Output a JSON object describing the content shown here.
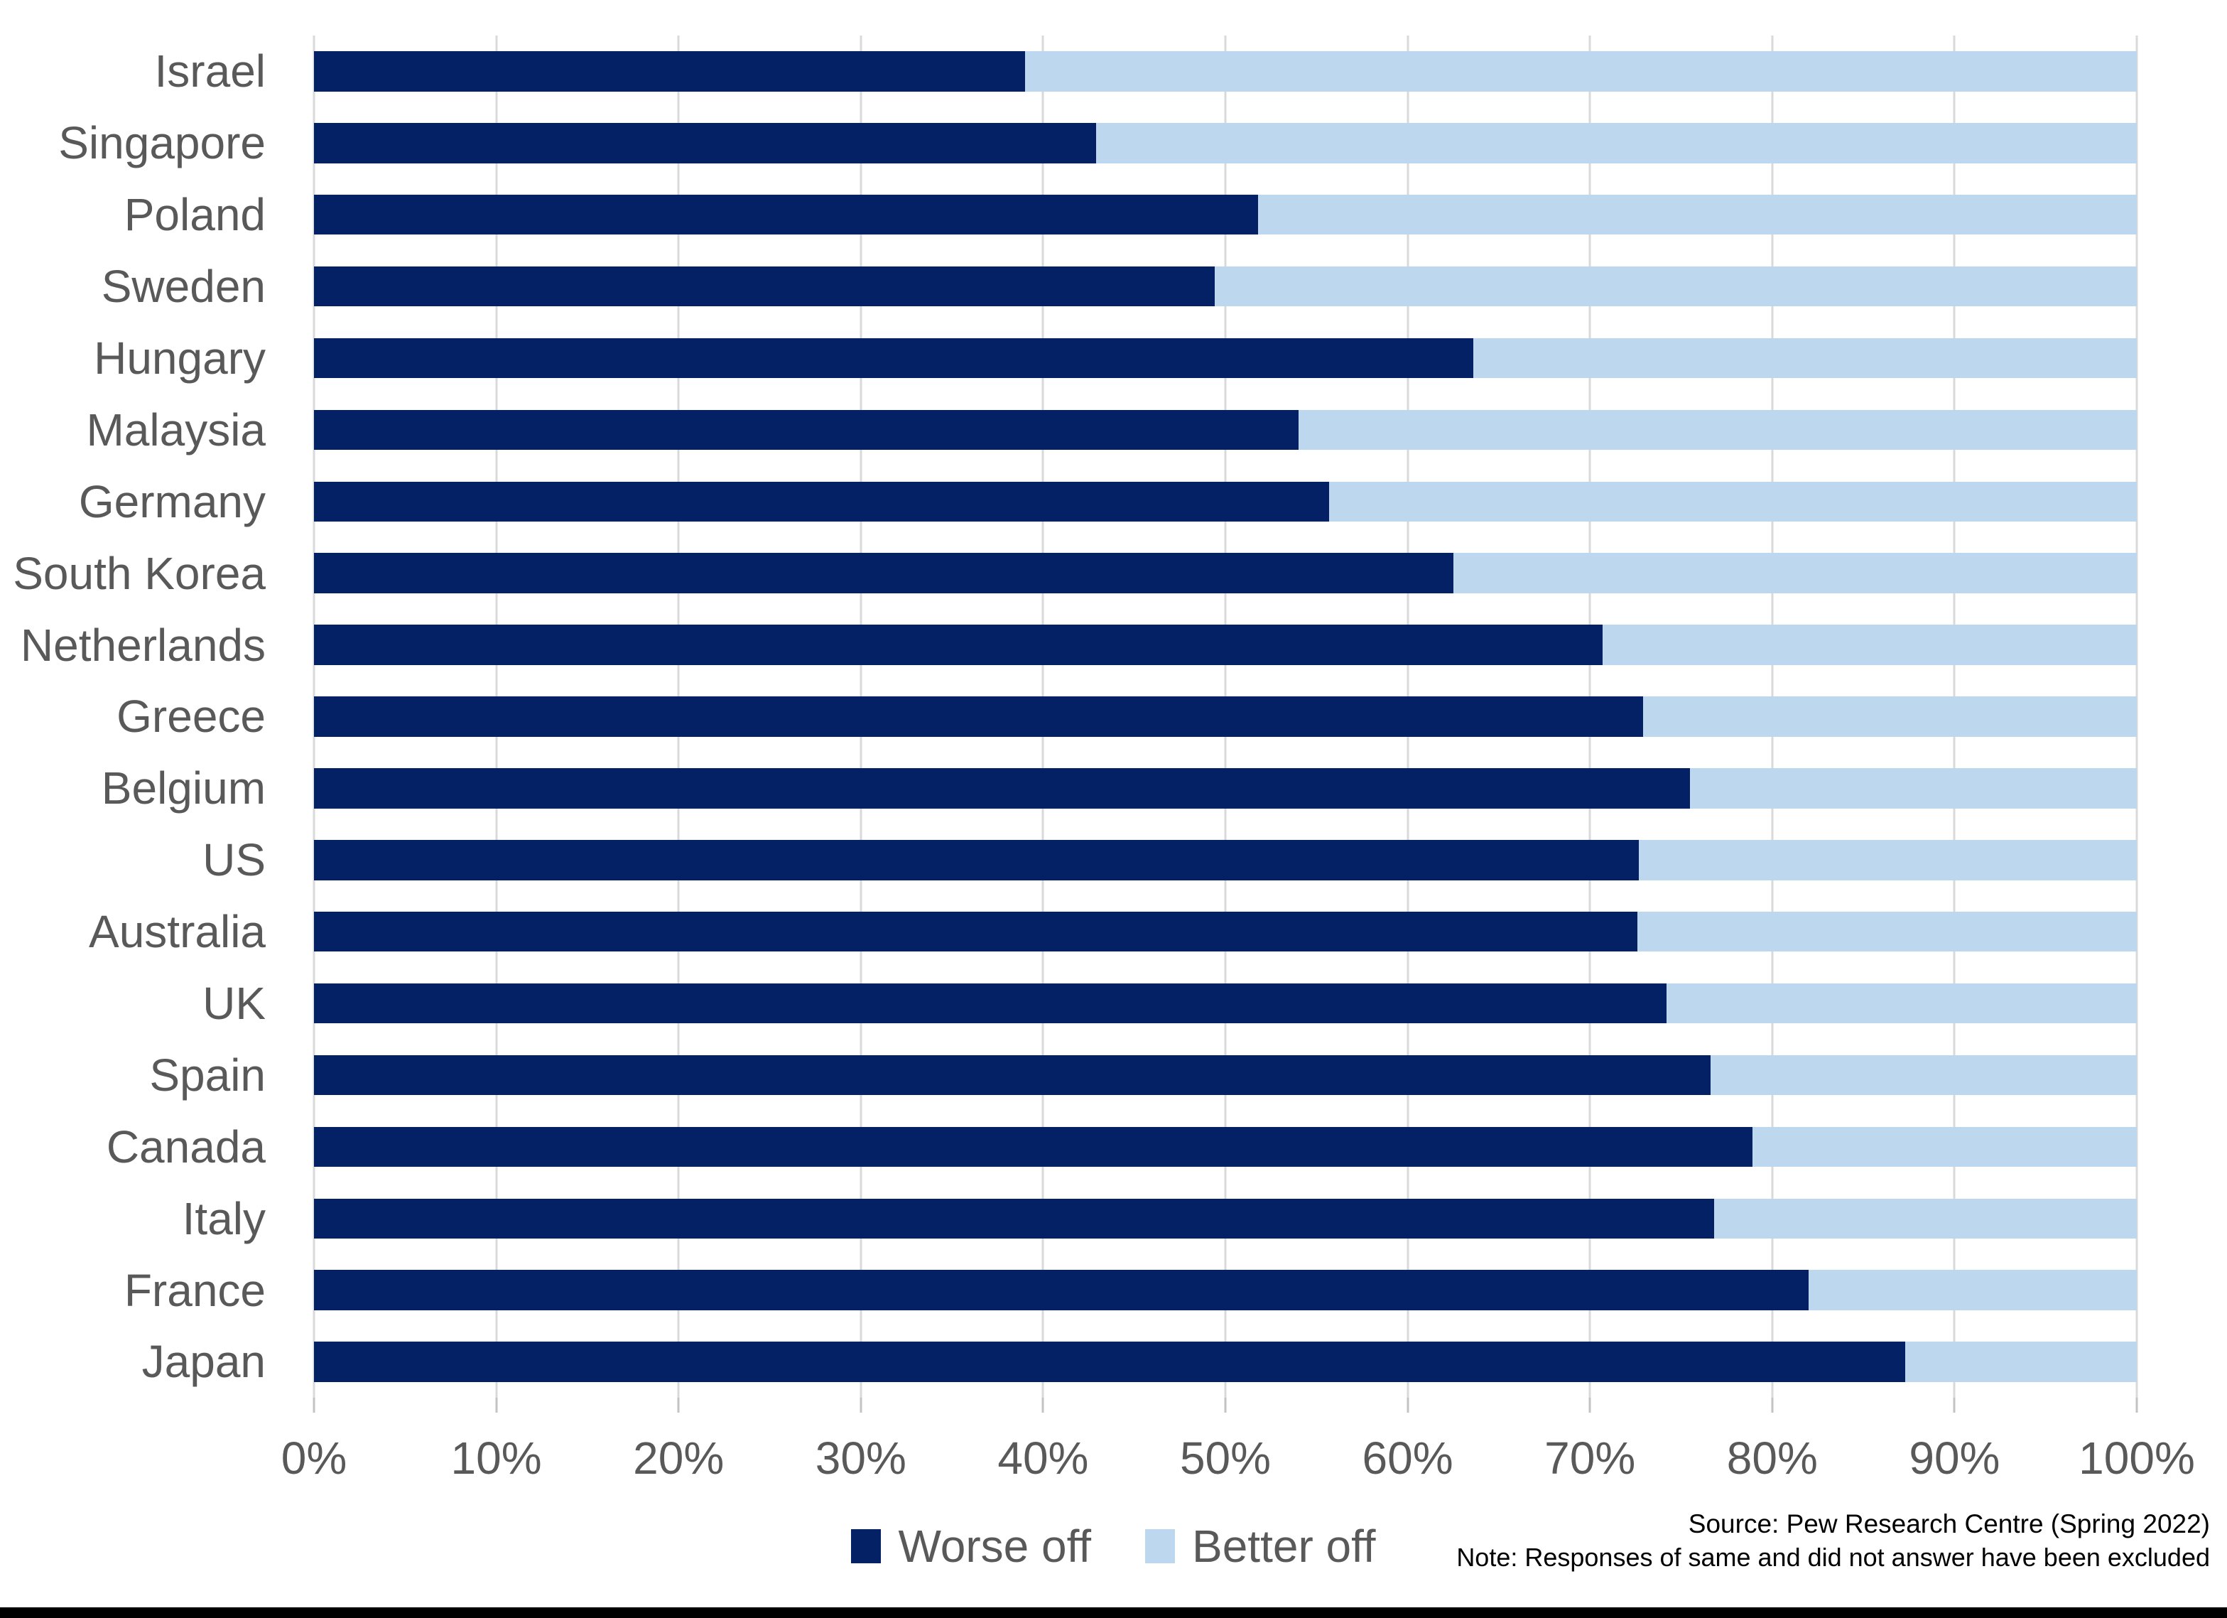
{
  "page": {
    "background": "#ffffff",
    "bottom_bar_color": "#000000"
  },
  "chart_data": {
    "type": "bar",
    "orientation": "horizontal",
    "stacked": true,
    "stack_total": 100,
    "categories": [
      "Israel",
      "Singapore",
      "Poland",
      "Sweden",
      "Hungary",
      "Malaysia",
      "Germany",
      "South Korea",
      "Netherlands",
      "Greece",
      "Belgium",
      "US",
      "Australia",
      "UK",
      "Spain",
      "Canada",
      "Italy",
      "France",
      "Japan"
    ],
    "series": [
      {
        "name": "Worse off",
        "color": "#042165",
        "values": [
          39.0,
          42.9,
          51.8,
          49.4,
          63.6,
          54.0,
          55.7,
          62.5,
          70.7,
          72.9,
          75.5,
          72.7,
          72.6,
          74.2,
          76.6,
          78.9,
          76.8,
          82.0,
          87.3
        ]
      },
      {
        "name": "Better off",
        "color": "#BDD7EE",
        "values": [
          61.0,
          57.1,
          48.2,
          50.6,
          36.4,
          46.0,
          44.3,
          37.5,
          29.3,
          27.1,
          24.5,
          27.3,
          27.4,
          25.8,
          23.4,
          21.1,
          23.2,
          18.0,
          12.7
        ]
      }
    ],
    "x_axis": {
      "min": 0,
      "max": 100,
      "tick_step": 10,
      "tick_labels": [
        "0%",
        "10%",
        "20%",
        "30%",
        "40%",
        "50%",
        "60%",
        "70%",
        "80%",
        "90%",
        "100%"
      ],
      "label_color": "#595959"
    },
    "gridlines": {
      "show": true,
      "color": "#d9d9d9"
    },
    "legend": {
      "position": "bottom-center",
      "entries": [
        "Worse off",
        "Better off"
      ]
    },
    "annotations": {
      "source": "Source: Pew Research Centre (Spring 2022)",
      "note": "Note: Responses of same and did not answer have been excluded"
    }
  }
}
